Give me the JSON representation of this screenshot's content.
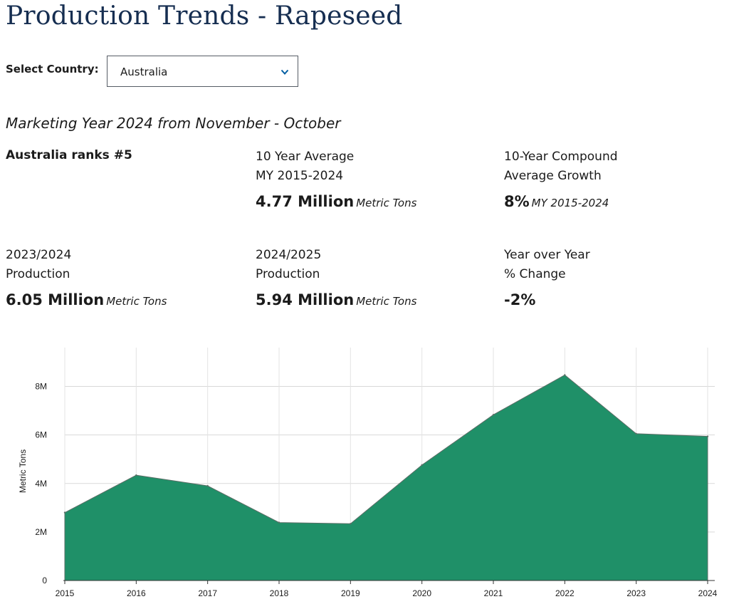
{
  "header": {
    "title": "Production Trends - Rapeseed"
  },
  "filter": {
    "label": "Select Country:",
    "selected": "Australia",
    "icon": "chevron-down-icon"
  },
  "marketing_year": "Marketing Year 2024 from November - October",
  "summary": {
    "rank_text": "Australia ranks #5",
    "ten_year_average": {
      "line1": "10 Year Average",
      "line2": "MY 2015-2024",
      "value": "4.77 Million",
      "unit": "Metric Tons"
    },
    "compound_growth": {
      "line1": "10-Year Compound",
      "line2": "Average Growth",
      "value": "8%",
      "unit": "MY 2015-2024"
    },
    "prev_production": {
      "line1": "2023/2024",
      "line2": "Production",
      "value": "6.05 Million",
      "unit": "Metric Tons"
    },
    "curr_production": {
      "line1": "2024/2025",
      "line2": "Production",
      "value": "5.94 Million",
      "unit": "Metric Tons"
    },
    "yoy_change": {
      "line1": "Year over Year",
      "line2": "% Change",
      "value": "-2%"
    }
  },
  "colors": {
    "area_fill": "#1f9068",
    "area_stroke": "#5a6e66",
    "title": "#162e51"
  },
  "chart_data": {
    "type": "area",
    "x": [
      "2015",
      "2016",
      "2017",
      "2018",
      "2019",
      "2020",
      "2021",
      "2022",
      "2023",
      "2024"
    ],
    "series": [
      {
        "values": [
          2800000,
          4340000,
          3900000,
          2390000,
          2340000,
          4760000,
          6830000,
          8470000,
          6050000,
          5940000
        ]
      }
    ],
    "y_ticks": [
      {
        "value": 0,
        "label": "0"
      },
      {
        "value": 2000000,
        "label": "2M"
      },
      {
        "value": 4000000,
        "label": "4M"
      },
      {
        "value": 6000000,
        "label": "6M"
      },
      {
        "value": 8000000,
        "label": "8M"
      }
    ],
    "ylabel": "Metric Tons",
    "xlabel": "",
    "ylim": [
      0,
      9600000
    ],
    "grid": true,
    "legend": "none"
  }
}
